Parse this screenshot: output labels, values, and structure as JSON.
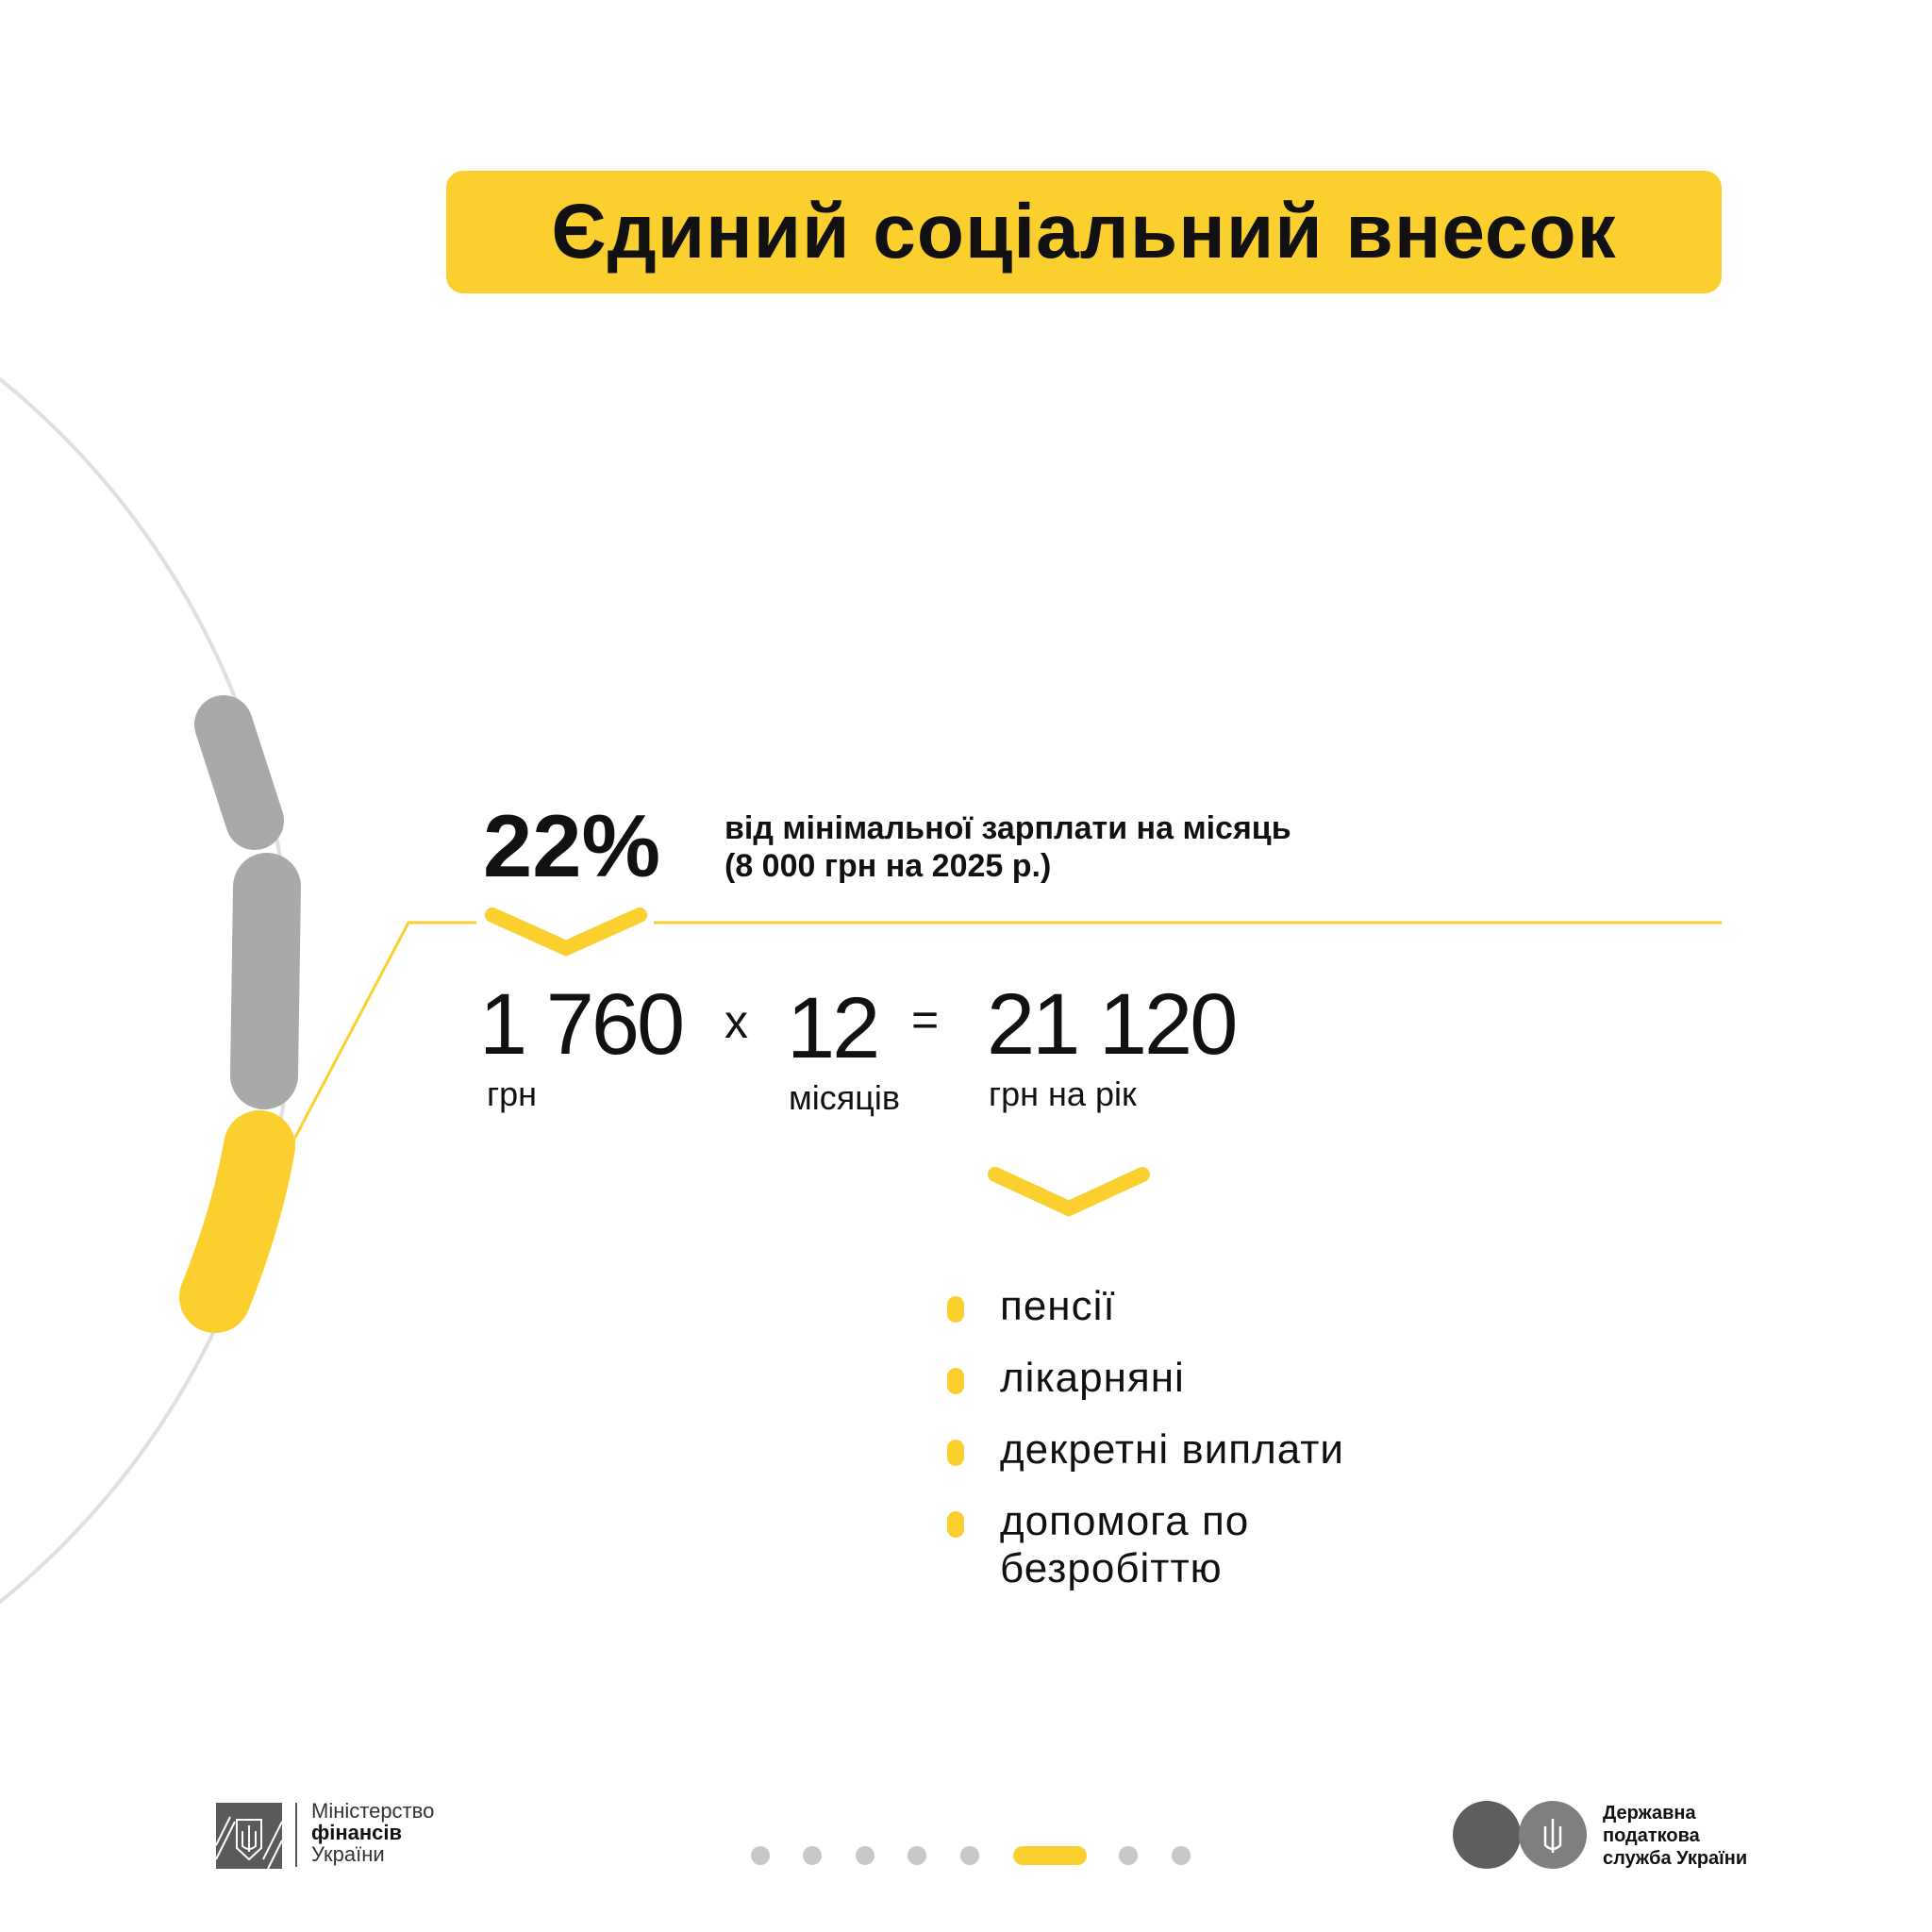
{
  "title": "Єдиний соціальний внесок",
  "rate": {
    "percent": "22%",
    "description_line1": "від мінімальної зарплати на місяць",
    "description_line2": "(8 000 грн на 2025 р.)"
  },
  "formula": {
    "monthly_amount": "1 760",
    "monthly_unit": "грн",
    "multiply_sign": "x",
    "months": "12",
    "months_unit": "місяців",
    "equals_sign": "=",
    "annual_amount": "21 120",
    "annual_unit": "грн на рік"
  },
  "benefits": [
    {
      "label": "пенсії"
    },
    {
      "label": "лікарняні"
    },
    {
      "label": "декретні виплати"
    },
    {
      "label_line1": "допомога по",
      "label_line2": "безробіттю"
    }
  ],
  "pagination": {
    "total": 8,
    "active_index": 5
  },
  "footer": {
    "ministry_line1": "Міністерство",
    "ministry_line2": "фінансів",
    "ministry_line3": "України",
    "tax_line1": "Державна",
    "tax_line2": "податкова",
    "tax_line3": "служба України"
  },
  "colors": {
    "accent": "#fbd02e",
    "gray": "#a9a9a9",
    "arc": "#e0e0e0",
    "text": "#111111"
  }
}
